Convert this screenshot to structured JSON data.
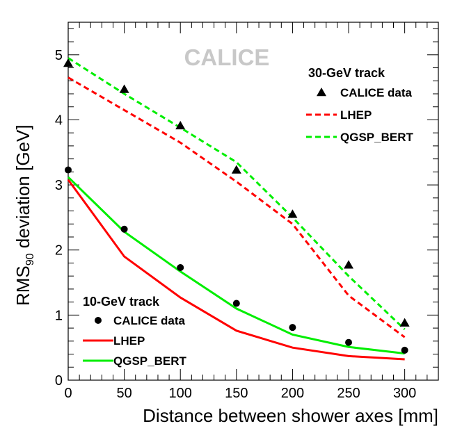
{
  "chart_data": {
    "type": "line",
    "title": "",
    "watermark": "CALICE",
    "xlabel": "Distance between shower axes [mm]",
    "ylabel": {
      "prefix": "RMS",
      "subscript": "90",
      "suffix": " deviation [GeV]"
    },
    "xlim": [
      0,
      330
    ],
    "ylim": [
      0,
      5.5
    ],
    "xticks": [
      0,
      50,
      100,
      150,
      200,
      250,
      300
    ],
    "yticks": [
      0,
      1,
      2,
      3,
      4,
      5
    ],
    "grid": false,
    "groups": [
      {
        "id": "gev30",
        "title": "30-GeV track",
        "legend_position": "top-right",
        "series": [
          {
            "name": "CALICE data",
            "kind": "marker",
            "marker": "triangle",
            "color": "#000000",
            "x": [
              0,
              50,
              100,
              150,
              200,
              250,
              300
            ],
            "y": [
              4.87,
              4.47,
              3.91,
              3.23,
              2.55,
              1.77,
              0.88
            ]
          },
          {
            "name": "LHEP",
            "kind": "line",
            "dash": "dashed",
            "color": "#ff0000",
            "x": [
              0,
              50,
              100,
              150,
              200,
              250,
              300
            ],
            "y": [
              4.65,
              4.15,
              3.65,
              3.05,
              2.4,
              1.3,
              0.66
            ]
          },
          {
            "name": "QGSP_BERT",
            "kind": "line",
            "dash": "dashed",
            "color": "#00ee00",
            "x": [
              0,
              50,
              100,
              150,
              200,
              250,
              300
            ],
            "y": [
              4.95,
              4.4,
              3.88,
              3.35,
              2.5,
              1.6,
              0.78
            ]
          }
        ]
      },
      {
        "id": "gev10",
        "title": "10-GeV track",
        "legend_position": "bottom-left",
        "series": [
          {
            "name": "CALICE data",
            "kind": "marker",
            "marker": "circle",
            "color": "#000000",
            "x": [
              0,
              50,
              100,
              150,
              200,
              250,
              300
            ],
            "y": [
              3.23,
              2.32,
              1.73,
              1.18,
              0.81,
              0.58,
              0.46
            ]
          },
          {
            "name": "LHEP",
            "kind": "line",
            "dash": "solid",
            "color": "#ff0000",
            "x": [
              0,
              50,
              100,
              150,
              200,
              250,
              300
            ],
            "y": [
              3.08,
              1.9,
              1.27,
              0.76,
              0.5,
              0.37,
              0.32
            ]
          },
          {
            "name": "QGSP_BERT",
            "kind": "line",
            "dash": "solid",
            "color": "#00ee00",
            "x": [
              0,
              50,
              100,
              150,
              200,
              250,
              300
            ],
            "y": [
              3.12,
              2.28,
              1.67,
              1.1,
              0.7,
              0.51,
              0.41
            ]
          }
        ]
      }
    ]
  }
}
